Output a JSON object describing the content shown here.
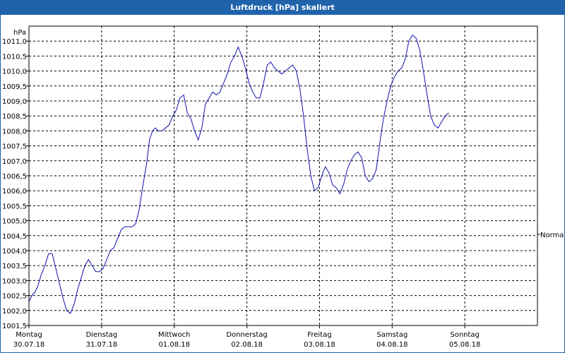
{
  "window": {
    "title": "Luftdruck [hPa] skaliert"
  },
  "chart_data": {
    "type": "line",
    "title": "Luftdruck [hPa] skaliert",
    "ylabel": "hPa",
    "ylim": [
      1001.5,
      1011.5
    ],
    "yticks": [
      "1011,0",
      "1010,5",
      "1010,0",
      "1009,5",
      "1009,0",
      "1008,5",
      "1008,0",
      "1007,5",
      "1007,0",
      "1006,5",
      "1006,0",
      "1005,5",
      "1005,0",
      "1004,5",
      "1004,0",
      "1003,5",
      "1003,0",
      "1002,5",
      "1002,0",
      "1001,5"
    ],
    "xlim": [
      0,
      7
    ],
    "days": [
      {
        "name": "Montag",
        "date": "30.07.18"
      },
      {
        "name": "Dienstag",
        "date": "31.07.18"
      },
      {
        "name": "Mittwoch",
        "date": "01.08.18"
      },
      {
        "name": "Donnerstag",
        "date": "02.08.18"
      },
      {
        "name": "Freitag",
        "date": "03.08.18"
      },
      {
        "name": "Samstag",
        "date": "04.08.18"
      },
      {
        "name": "Sonntag",
        "date": "05.08.18"
      }
    ],
    "reference": {
      "label": "Normal"
    },
    "grid": true,
    "line_color": "#1010b0",
    "series": [
      {
        "values": [
          [
            0.0,
            1002.3
          ],
          [
            0.04,
            1002.5
          ],
          [
            0.08,
            1002.6
          ],
          [
            0.12,
            1002.8
          ],
          [
            0.17,
            1003.2
          ],
          [
            0.22,
            1003.5
          ],
          [
            0.27,
            1003.9
          ],
          [
            0.32,
            1003.9
          ],
          [
            0.37,
            1003.4
          ],
          [
            0.42,
            1002.9
          ],
          [
            0.47,
            1002.4
          ],
          [
            0.52,
            1002.0
          ],
          [
            0.57,
            1001.9
          ],
          [
            0.62,
            1002.2
          ],
          [
            0.67,
            1002.7
          ],
          [
            0.72,
            1003.1
          ],
          [
            0.77,
            1003.5
          ],
          [
            0.82,
            1003.7
          ],
          [
            0.87,
            1003.5
          ],
          [
            0.92,
            1003.3
          ],
          [
            0.97,
            1003.3
          ],
          [
            1.02,
            1003.4
          ],
          [
            1.07,
            1003.7
          ],
          [
            1.12,
            1004.0
          ],
          [
            1.17,
            1004.1
          ],
          [
            1.22,
            1004.4
          ],
          [
            1.27,
            1004.7
          ],
          [
            1.32,
            1004.8
          ],
          [
            1.37,
            1004.8
          ],
          [
            1.42,
            1004.8
          ],
          [
            1.47,
            1004.9
          ],
          [
            1.52,
            1005.4
          ],
          [
            1.57,
            1006.2
          ],
          [
            1.62,
            1006.9
          ],
          [
            1.66,
            1007.7
          ],
          [
            1.7,
            1008.0
          ],
          [
            1.74,
            1008.1
          ],
          [
            1.78,
            1008.0
          ],
          [
            1.83,
            1008.0
          ],
          [
            1.88,
            1008.1
          ],
          [
            1.93,
            1008.2
          ],
          [
            1.98,
            1008.5
          ],
          [
            2.03,
            1008.7
          ],
          [
            2.08,
            1009.1
          ],
          [
            2.13,
            1009.2
          ],
          [
            2.18,
            1008.6
          ],
          [
            2.23,
            1008.4
          ],
          [
            2.28,
            1008.0
          ],
          [
            2.33,
            1007.7
          ],
          [
            2.38,
            1008.1
          ],
          [
            2.43,
            1008.9
          ],
          [
            2.48,
            1009.1
          ],
          [
            2.53,
            1009.3
          ],
          [
            2.58,
            1009.2
          ],
          [
            2.63,
            1009.3
          ],
          [
            2.68,
            1009.6
          ],
          [
            2.73,
            1009.9
          ],
          [
            2.78,
            1010.3
          ],
          [
            2.83,
            1010.5
          ],
          [
            2.88,
            1010.8
          ],
          [
            2.93,
            1010.5
          ],
          [
            2.98,
            1010.1
          ],
          [
            3.03,
            1009.6
          ],
          [
            3.08,
            1009.3
          ],
          [
            3.13,
            1009.1
          ],
          [
            3.18,
            1009.1
          ],
          [
            3.23,
            1009.6
          ],
          [
            3.28,
            1010.2
          ],
          [
            3.33,
            1010.3
          ],
          [
            3.38,
            1010.1
          ],
          [
            3.43,
            1010.0
          ],
          [
            3.48,
            1009.9
          ],
          [
            3.53,
            1010.0
          ],
          [
            3.58,
            1010.1
          ],
          [
            3.63,
            1010.2
          ],
          [
            3.68,
            1010.0
          ],
          [
            3.73,
            1009.4
          ],
          [
            3.78,
            1008.5
          ],
          [
            3.83,
            1007.4
          ],
          [
            3.88,
            1006.5
          ],
          [
            3.93,
            1006.0
          ],
          [
            3.98,
            1006.1
          ],
          [
            4.03,
            1006.5
          ],
          [
            4.08,
            1006.8
          ],
          [
            4.13,
            1006.6
          ],
          [
            4.18,
            1006.2
          ],
          [
            4.23,
            1006.1
          ],
          [
            4.28,
            1005.9
          ],
          [
            4.33,
            1006.2
          ],
          [
            4.38,
            1006.7
          ],
          [
            4.43,
            1007.0
          ],
          [
            4.48,
            1007.2
          ],
          [
            4.53,
            1007.3
          ],
          [
            4.58,
            1007.1
          ],
          [
            4.63,
            1006.5
          ],
          [
            4.68,
            1006.3
          ],
          [
            4.73,
            1006.4
          ],
          [
            4.78,
            1006.7
          ],
          [
            4.83,
            1007.6
          ],
          [
            4.88,
            1008.4
          ],
          [
            4.93,
            1009.0
          ],
          [
            4.98,
            1009.5
          ],
          [
            5.03,
            1009.8
          ],
          [
            5.08,
            1010.0
          ],
          [
            5.13,
            1010.1
          ],
          [
            5.18,
            1010.4
          ],
          [
            5.23,
            1011.0
          ],
          [
            5.28,
            1011.2
          ],
          [
            5.33,
            1011.1
          ],
          [
            5.38,
            1010.7
          ],
          [
            5.43,
            1010.0
          ],
          [
            5.48,
            1009.2
          ],
          [
            5.53,
            1008.5
          ],
          [
            5.58,
            1008.2
          ],
          [
            5.63,
            1008.1
          ],
          [
            5.68,
            1008.3
          ],
          [
            5.73,
            1008.5
          ],
          [
            5.78,
            1008.6
          ]
        ]
      }
    ]
  }
}
